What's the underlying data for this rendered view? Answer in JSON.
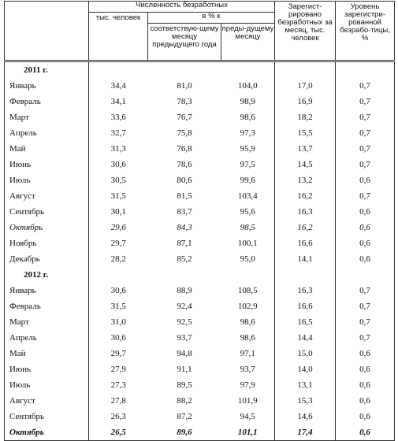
{
  "header": {
    "unemployed": "Численность безработных",
    "thousands": "тыс. человек",
    "percent_of": "в % к",
    "same_month_prev_year": "соответствую-щему месяцу предыдущего года",
    "prev_month": "преды-дущему месяцу",
    "registered": "Зарегист-рировано безработных за месяц, тыс. человек",
    "rate": "Уровень зарегистри-рованной безрабо-тицы, %"
  },
  "sections": [
    {
      "title": "2011 г.",
      "rows": [
        [
          "Январь",
          "34,4",
          "81,0",
          "104,0",
          "17,0",
          "0,7"
        ],
        [
          "Февраль",
          "34,1",
          "78,3",
          "98,9",
          "16,9",
          "0,7"
        ],
        [
          "Март",
          "33,6",
          "76,7",
          "98,6",
          "18,2",
          "0,7"
        ],
        [
          "Апрель",
          "32,7",
          "75,8",
          "97,3",
          "15,5",
          "0,7"
        ],
        [
          "Май",
          "31,3",
          "76,8",
          "95,9",
          "13,7",
          "0,7"
        ],
        [
          "Июнь",
          "30,6",
          "78,6",
          "97,5",
          "14,5",
          "0,7"
        ],
        [
          "Июль",
          "30,5",
          "80,6",
          "99,6",
          "13,2",
          "0,6"
        ],
        [
          "Август",
          "31,5",
          "81,5",
          "103,4",
          "16,2",
          "0,7"
        ],
        [
          "Сентябрь",
          "30,1",
          "83,7",
          "95,6",
          "16,3",
          "0,6"
        ],
        [
          "Октябрь",
          "29,6",
          "84,3",
          "98,5",
          "16,2",
          "0,6"
        ],
        [
          "Ноябрь",
          "29,7",
          "87,1",
          "100,1",
          "16,6",
          "0,6"
        ],
        [
          "Декабрь",
          "28,2",
          "85,2",
          "95,0",
          "14,1",
          "0,6"
        ]
      ]
    },
    {
      "title": "2012 г.",
      "rows": [
        [
          "Январь",
          "30,6",
          "88,9",
          "108,5",
          "16,3",
          "0,7"
        ],
        [
          "Февраль",
          "31,5",
          "92,4",
          "102,9",
          "16,6",
          "0,7"
        ],
        [
          "Март",
          "31,0",
          "92,5",
          "98,6",
          "16,5",
          "0,7"
        ],
        [
          "Апрель",
          "30,6",
          "93,7",
          "98,6",
          "14,4",
          "0,7"
        ],
        [
          "Май",
          "29,7",
          "94,8",
          "97,1",
          "15,0",
          "0,6"
        ],
        [
          "Июнь",
          "27,9",
          "91,1",
          "93,7",
          "14,0",
          "0,6"
        ],
        [
          "Июль",
          "27,3",
          "89,5",
          "97,9",
          "13,1",
          "0,6"
        ],
        [
          "Август",
          "27,8",
          "88,2",
          "101,9",
          "15,3",
          "0,6"
        ],
        [
          "Сентябрь",
          "26,3",
          "87,2",
          "94,5",
          "14,6",
          "0,6"
        ],
        [
          "Октябрь",
          "26,5",
          "89,6",
          "101,1",
          "17,4",
          "0,6"
        ]
      ]
    }
  ]
}
